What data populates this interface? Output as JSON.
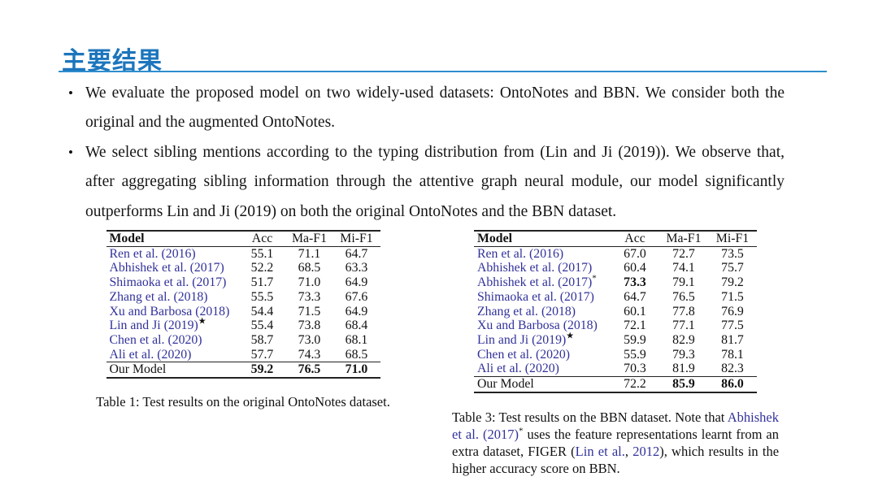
{
  "colors": {
    "accent": "#1C75BC",
    "rule": "#2E8ECD",
    "citation": "#32329B"
  },
  "slide": {
    "title": "主要结果",
    "bullet_glyph": "•"
  },
  "bullets": [
    {
      "lines": [
        "We evaluate the proposed model on two widely-used datasets: OntoNotes and BBN. We consider both the",
        "original and the augmented OntoNotes."
      ]
    },
    {
      "lines": [
        "We select sibling mentions according to the typing distribution from (Lin and Ji (2019)). We observe that,",
        "after aggregating sibling information through the attentive graph neural module, our model significantly",
        "outperforms Lin and Ji (2019) on both the original OntoNotes and the BBN dataset."
      ]
    }
  ],
  "tables": [
    {
      "headers": [
        "Model",
        "Acc",
        "Ma-F1",
        "Mi-F1"
      ],
      "rows": [
        {
          "model": "Ren et al. (2016)",
          "cite": true,
          "sup": "",
          "final": false,
          "values": [
            "55.1",
            "71.1",
            "64.7"
          ],
          "bold": [
            false,
            false,
            false
          ]
        },
        {
          "model": "Abhishek et al. (2017)",
          "cite": true,
          "sup": "",
          "final": false,
          "values": [
            "52.2",
            "68.5",
            "63.3"
          ],
          "bold": [
            false,
            false,
            false
          ]
        },
        {
          "model": "Shimaoka et al. (2017)",
          "cite": true,
          "sup": "",
          "final": false,
          "values": [
            "51.7",
            "71.0",
            "64.9"
          ],
          "bold": [
            false,
            false,
            false
          ]
        },
        {
          "model": "Zhang et al. (2018)",
          "cite": true,
          "sup": "",
          "final": false,
          "values": [
            "55.5",
            "73.3",
            "67.6"
          ],
          "bold": [
            false,
            false,
            false
          ]
        },
        {
          "model": "Xu and Barbosa (2018)",
          "cite": true,
          "sup": "",
          "final": false,
          "values": [
            "54.4",
            "71.5",
            "64.9"
          ],
          "bold": [
            false,
            false,
            false
          ]
        },
        {
          "model": "Lin and Ji (2019)",
          "cite": true,
          "sup": "★",
          "final": false,
          "values": [
            "55.4",
            "73.8",
            "68.4"
          ],
          "bold": [
            false,
            false,
            false
          ]
        },
        {
          "model": "Chen et al. (2020)",
          "cite": true,
          "sup": "",
          "final": false,
          "values": [
            "58.7",
            "73.0",
            "68.1"
          ],
          "bold": [
            false,
            false,
            false
          ]
        },
        {
          "model": "Ali et al. (2020)",
          "cite": true,
          "sup": "",
          "final": false,
          "values": [
            "57.7",
            "74.3",
            "68.5"
          ],
          "bold": [
            false,
            false,
            false
          ]
        },
        {
          "model": "Our Model",
          "cite": false,
          "sup": "",
          "final": true,
          "values": [
            "59.2",
            "76.5",
            "71.0"
          ],
          "bold": [
            true,
            true,
            true
          ]
        }
      ],
      "caption_segments": [
        {
          "text": "Table 1: Test results on the original OntoNotes dataset.",
          "cite": false,
          "sup": false
        }
      ]
    },
    {
      "headers": [
        "Model",
        "Acc",
        "Ma-F1",
        "Mi-F1"
      ],
      "rows": [
        {
          "model": "Ren et al. (2016)",
          "cite": true,
          "sup": "",
          "final": false,
          "values": [
            "67.0",
            "72.7",
            "73.5"
          ],
          "bold": [
            false,
            false,
            false
          ]
        },
        {
          "model": "Abhishek et al. (2017)",
          "cite": true,
          "sup": "",
          "final": false,
          "values": [
            "60.4",
            "74.1",
            "75.7"
          ],
          "bold": [
            false,
            false,
            false
          ]
        },
        {
          "model": "Abhishek et al. (2017)",
          "cite": true,
          "sup": "*",
          "final": false,
          "values": [
            "73.3",
            "79.1",
            "79.2"
          ],
          "bold": [
            true,
            false,
            false
          ]
        },
        {
          "model": "Shimaoka et al. (2017)",
          "cite": true,
          "sup": "",
          "final": false,
          "values": [
            "64.7",
            "76.5",
            "71.5"
          ],
          "bold": [
            false,
            false,
            false
          ]
        },
        {
          "model": "Zhang et al. (2018)",
          "cite": true,
          "sup": "",
          "final": false,
          "values": [
            "60.1",
            "77.8",
            "76.9"
          ],
          "bold": [
            false,
            false,
            false
          ]
        },
        {
          "model": "Xu and Barbosa (2018)",
          "cite": true,
          "sup": "",
          "final": false,
          "values": [
            "72.1",
            "77.1",
            "77.5"
          ],
          "bold": [
            false,
            false,
            false
          ]
        },
        {
          "model": "Lin and Ji (2019)",
          "cite": true,
          "sup": "★",
          "final": false,
          "values": [
            "59.9",
            "82.9",
            "81.7"
          ],
          "bold": [
            false,
            false,
            false
          ]
        },
        {
          "model": "Chen et al. (2020)",
          "cite": true,
          "sup": "",
          "final": false,
          "values": [
            "55.9",
            "79.3",
            "78.1"
          ],
          "bold": [
            false,
            false,
            false
          ]
        },
        {
          "model": "Ali et al. (2020)",
          "cite": true,
          "sup": "",
          "final": false,
          "values": [
            "70.3",
            "81.9",
            "82.3"
          ],
          "bold": [
            false,
            false,
            false
          ]
        },
        {
          "model": "Our Model",
          "cite": false,
          "sup": "",
          "final": true,
          "values": [
            "72.2",
            "85.9",
            "86.0"
          ],
          "bold": [
            false,
            true,
            true
          ]
        }
      ],
      "caption_segments": [
        {
          "text": "Table 3: Test results on the BBN dataset. Note that ",
          "cite": false,
          "sup": false
        },
        {
          "text": "Abhishek et al. (2017)",
          "cite": true,
          "sup": false
        },
        {
          "text": "*",
          "cite": false,
          "sup": true
        },
        {
          "text": " uses the feature representations learnt from an extra dataset, FIGER (",
          "cite": false,
          "sup": false
        },
        {
          "text": "Lin et al.",
          "cite": true,
          "sup": false
        },
        {
          "text": ", ",
          "cite": false,
          "sup": false
        },
        {
          "text": "2012",
          "cite": true,
          "sup": false
        },
        {
          "text": "), which results in the higher accuracy score on BBN.",
          "cite": false,
          "sup": false
        }
      ]
    }
  ]
}
